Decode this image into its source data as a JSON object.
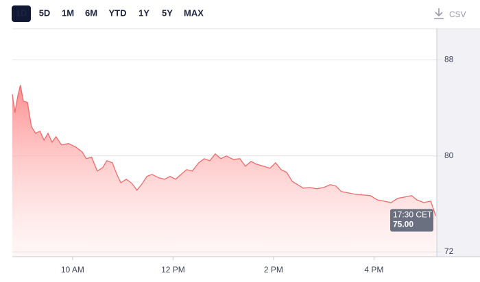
{
  "controls": {
    "ranges": [
      "1D",
      "5D",
      "1M",
      "6M",
      "YTD",
      "1Y",
      "5Y",
      "MAX"
    ],
    "selected": 0,
    "download": "CSV"
  },
  "chart_data": {
    "type": "area",
    "color": "#f06a6a",
    "grid": true,
    "x": [
      8.8,
      8.85,
      8.91,
      8.96,
      9.02,
      9.1,
      9.18,
      9.26,
      9.35,
      9.43,
      9.51,
      9.59,
      9.67,
      9.78,
      9.92,
      10.06,
      10.19,
      10.27,
      10.38,
      10.49,
      10.6,
      10.68,
      10.79,
      10.88,
      10.96,
      11.07,
      11.18,
      11.28,
      11.37,
      11.48,
      11.58,
      11.72,
      11.83,
      11.94,
      12.05,
      12.16,
      12.27,
      12.38,
      12.51,
      12.62,
      12.73,
      12.84,
      12.95,
      13.06,
      13.2,
      13.33,
      13.44,
      13.55,
      13.66,
      13.8,
      13.93,
      14.04,
      14.15,
      14.26,
      14.37,
      14.48,
      14.59,
      14.72,
      14.86,
      15.0,
      15.13,
      15.24,
      15.35,
      15.49,
      15.63,
      15.79,
      15.93,
      16.06,
      16.2,
      16.34,
      16.47,
      16.61,
      16.75,
      16.85,
      16.99,
      17.13,
      17.23
    ],
    "values": [
      85.14,
      83.6,
      85.03,
      85.9,
      84.57,
      84.46,
      82.46,
      81.89,
      82.06,
      81.31,
      81.89,
      81.14,
      81.6,
      80.91,
      81.03,
      80.74,
      80.34,
      79.77,
      79.89,
      78.74,
      79.03,
      79.6,
      79.43,
      78.46,
      77.77,
      78.06,
      77.71,
      77.14,
      77.6,
      78.29,
      78.46,
      78.17,
      78.06,
      78.29,
      78.06,
      78.46,
      78.86,
      78.74,
      79.43,
      79.77,
      79.6,
      80.17,
      79.77,
      80.0,
      79.71,
      79.77,
      79.14,
      79.54,
      79.31,
      79.14,
      78.97,
      79.43,
      78.86,
      78.63,
      77.89,
      77.6,
      77.31,
      77.37,
      77.26,
      77.37,
      77.6,
      77.49,
      77.03,
      76.91,
      76.8,
      76.74,
      76.69,
      76.34,
      76.23,
      76.11,
      76.46,
      76.57,
      76.69,
      76.34,
      76.11,
      76.23,
      75.0
    ],
    "xlim": [
      8.8,
      17.25
    ],
    "xticks": [
      {
        "value": 10,
        "label": "10 AM"
      },
      {
        "value": 12,
        "label": "12 PM"
      },
      {
        "value": 14,
        "label": "2 PM"
      },
      {
        "value": 16,
        "label": "4 PM"
      }
    ],
    "ylim": [
      71.6,
      90.6
    ],
    "yticks": [
      72,
      80,
      88
    ],
    "tooltip": {
      "time": "17:30 CET",
      "value": {
        "value": 75,
        "label": "75.00"
      }
    }
  }
}
